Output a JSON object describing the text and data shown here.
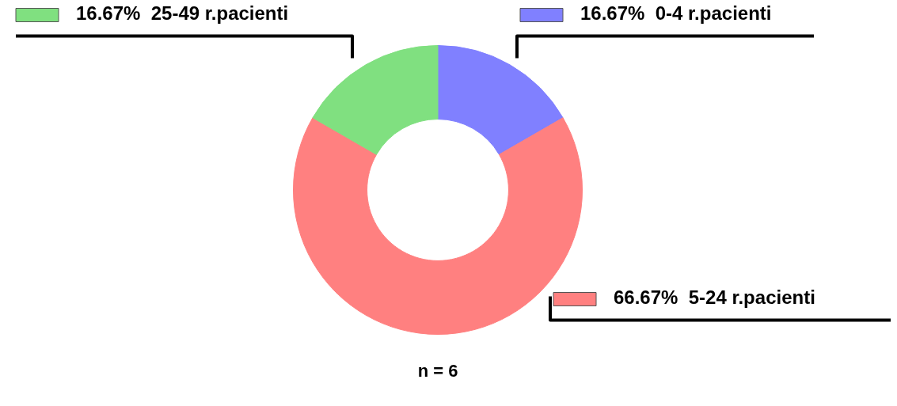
{
  "chart_data": {
    "type": "donut",
    "categories": [
      "0-4 r.pacienti",
      "5-24 r.pacienti",
      "25-49 r.pacienti"
    ],
    "values": [
      16.67,
      66.67,
      16.67
    ],
    "value_labels": [
      "16.67%",
      "66.67%",
      "16.67%"
    ],
    "colors": [
      "#8080ff",
      "#ff8080",
      "#80e080"
    ],
    "annotations": [
      "n = 6"
    ],
    "legend": "top"
  }
}
